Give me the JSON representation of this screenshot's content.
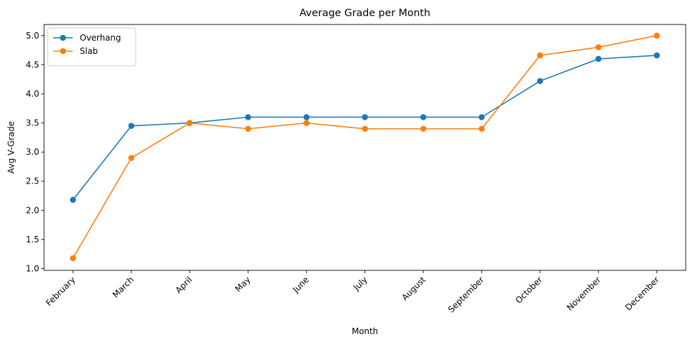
{
  "chart_data": {
    "type": "line",
    "title": "Average Grade per Month",
    "xlabel": "Month",
    "ylabel": "Avg V-Grade",
    "categories": [
      "February",
      "March",
      "April",
      "May",
      "June",
      "July",
      "August",
      "September",
      "October",
      "November",
      "December"
    ],
    "ylim": [
      0.97,
      5.19
    ],
    "yticks": [
      1.0,
      1.5,
      2.0,
      2.5,
      3.0,
      3.5,
      4.0,
      4.5,
      5.0
    ],
    "ytick_labels": [
      "1.0",
      "1.5",
      "2.0",
      "2.5",
      "3.0",
      "3.5",
      "4.0",
      "4.5",
      "5.0"
    ],
    "grid": false,
    "legend_position": "top-left",
    "series": [
      {
        "name": "Overhang",
        "color": "#1f77b4",
        "marker": "circle",
        "values": [
          2.18,
          3.45,
          3.5,
          3.6,
          3.6,
          3.6,
          3.6,
          3.6,
          4.22,
          4.6,
          4.66
        ]
      },
      {
        "name": "Slab",
        "color": "#ff7f0e",
        "marker": "circle",
        "values": [
          1.18,
          2.9,
          3.5,
          3.4,
          3.5,
          3.4,
          3.4,
          3.4,
          4.66,
          4.8,
          5.0
        ]
      }
    ]
  }
}
